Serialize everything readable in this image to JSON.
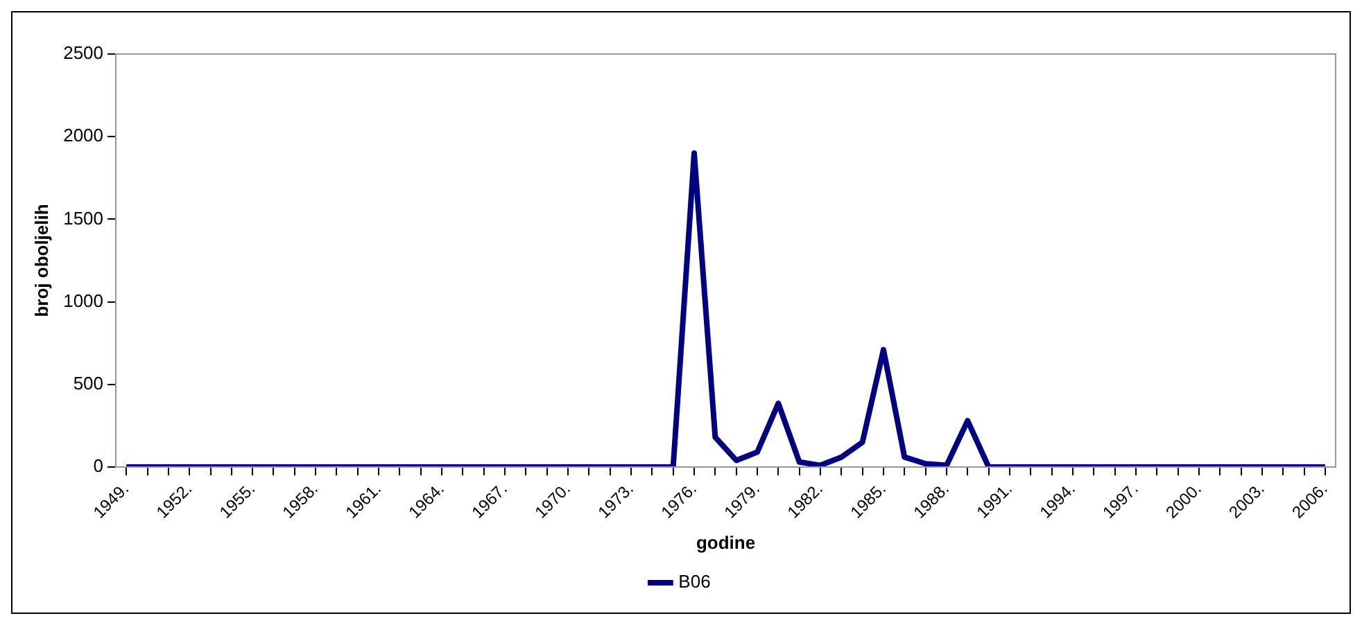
{
  "chart_data": {
    "type": "line",
    "xlabel": "godine",
    "ylabel": "broj oboljelih",
    "categories": [
      "1949.",
      null,
      null,
      "1952.",
      null,
      null,
      "1955.",
      null,
      null,
      "1958.",
      null,
      null,
      "1961.",
      null,
      null,
      "1964.",
      null,
      null,
      "1967.",
      null,
      null,
      "1970.",
      null,
      null,
      "1973.",
      null,
      null,
      "1976.",
      null,
      null,
      "1979.",
      null,
      null,
      "1982.",
      null,
      null,
      "1985.",
      null,
      null,
      "1988.",
      null,
      null,
      "1991.",
      null,
      null,
      "1994.",
      null,
      null,
      "1997.",
      null,
      null,
      "2000.",
      null,
      null,
      "2003.",
      null,
      null,
      "2006."
    ],
    "series": [
      {
        "name": "B06",
        "color": "#000080",
        "values": [
          0,
          0,
          0,
          0,
          0,
          0,
          0,
          0,
          0,
          0,
          0,
          0,
          0,
          0,
          0,
          0,
          0,
          0,
          0,
          0,
          0,
          0,
          0,
          0,
          0,
          0,
          0,
          1900,
          180,
          40,
          90,
          385,
          30,
          10,
          60,
          150,
          710,
          60,
          20,
          10,
          280,
          0,
          0,
          0,
          0,
          0,
          0,
          0,
          0,
          0,
          0,
          0,
          0,
          0,
          0,
          0,
          0,
          0
        ]
      }
    ],
    "ylim": [
      0,
      2500
    ],
    "yticks": [
      0,
      500,
      1000,
      1500,
      2000,
      2500
    ],
    "grid": false,
    "legend": "bottom",
    "marker": "none",
    "line_style": "solid"
  }
}
